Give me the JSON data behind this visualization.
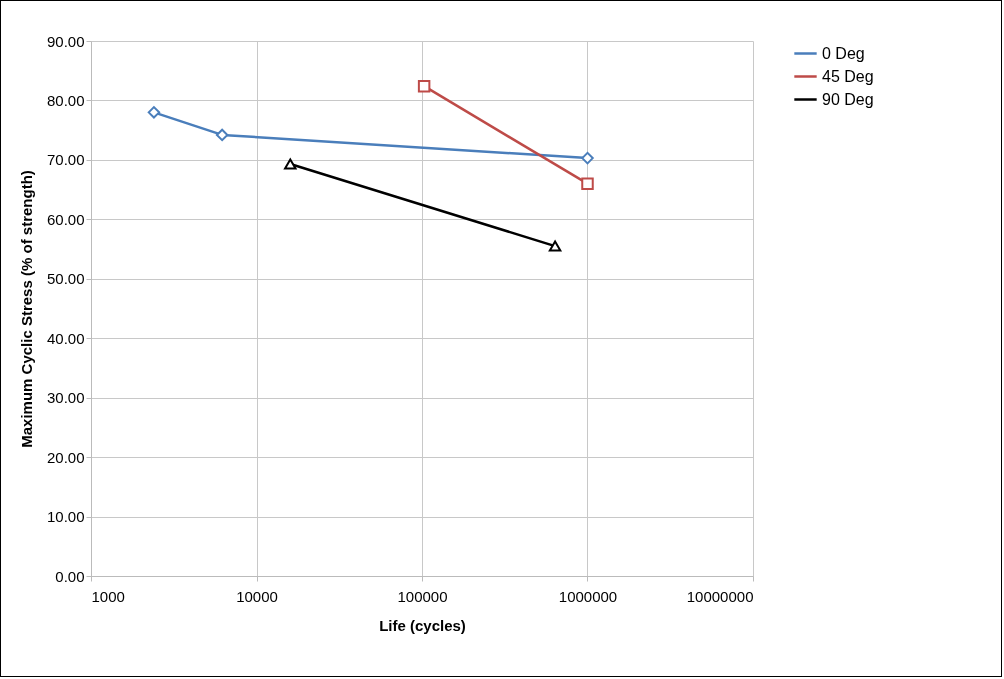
{
  "chart_data": {
    "type": "line",
    "xlabel": "Life (cycles)",
    "ylabel": "Maximum Cyclic Stress (% of strength)",
    "log": "x",
    "grid": true,
    "legend": "right",
    "xlim": [
      1000,
      10000000
    ],
    "xticks": [
      1000,
      10000,
      100000,
      1000000,
      10000000
    ],
    "ylim": [
      0,
      90
    ],
    "yticks": [
      {
        "value": 0,
        "label": "0.00"
      },
      {
        "value": 10,
        "label": "10.00"
      },
      {
        "value": 20,
        "label": "20.00"
      },
      {
        "value": 30,
        "label": "30.00"
      },
      {
        "value": 40,
        "label": "40.00"
      },
      {
        "value": 50,
        "label": "50.00"
      },
      {
        "value": 60,
        "label": "60.00"
      },
      {
        "value": 70,
        "label": "70.00"
      },
      {
        "value": 80,
        "label": "80.00"
      },
      {
        "value": 90,
        "label": "90.00"
      }
    ],
    "series": [
      {
        "name": "0 Deg",
        "color": "#4a7ebb",
        "marker": "diamond",
        "x": [
          2400,
          6200,
          1000000
        ],
        "values": [
          78,
          74.2,
          70.3
        ]
      },
      {
        "name": "45 Deg",
        "color": "#be4b48",
        "marker": "square",
        "x": [
          103000,
          1000000
        ],
        "values": [
          82.4,
          66
        ]
      },
      {
        "name": "90 Deg",
        "color": "#000000",
        "marker": "triangle",
        "x": [
          16000,
          637000
        ],
        "values": [
          69.3,
          55.5
        ]
      }
    ]
  }
}
